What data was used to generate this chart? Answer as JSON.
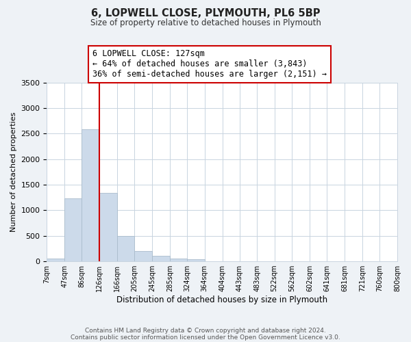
{
  "title": "6, LOPWELL CLOSE, PLYMOUTH, PL6 5BP",
  "subtitle": "Size of property relative to detached houses in Plymouth",
  "xlabel": "Distribution of detached houses by size in Plymouth",
  "ylabel": "Number of detached properties",
  "bar_color": "#ccdaea",
  "bar_edgecolor": "#aabccc",
  "bin_edges": [
    7,
    47,
    86,
    126,
    166,
    205,
    245,
    285,
    324,
    364,
    404,
    443,
    483,
    522,
    562,
    602,
    641,
    681,
    721,
    760,
    800
  ],
  "bin_labels": [
    "7sqm",
    "47sqm",
    "86sqm",
    "126sqm",
    "166sqm",
    "205sqm",
    "245sqm",
    "285sqm",
    "324sqm",
    "364sqm",
    "404sqm",
    "443sqm",
    "483sqm",
    "522sqm",
    "562sqm",
    "602sqm",
    "641sqm",
    "681sqm",
    "721sqm",
    "760sqm",
    "800sqm"
  ],
  "bar_heights": [
    50,
    1230,
    2580,
    1340,
    500,
    200,
    110,
    50,
    40,
    0,
    0,
    0,
    0,
    0,
    0,
    0,
    0,
    0,
    0,
    0
  ],
  "property_line_x": 126,
  "property_line_color": "#cc0000",
  "ylim": [
    0,
    3500
  ],
  "yticks": [
    0,
    500,
    1000,
    1500,
    2000,
    2500,
    3000,
    3500
  ],
  "annotation_line1": "6 LOPWELL CLOSE: 127sqm",
  "annotation_line2": "← 64% of detached houses are smaller (3,843)",
  "annotation_line3": "36% of semi-detached houses are larger (2,151) →",
  "footer_line1": "Contains HM Land Registry data © Crown copyright and database right 2024.",
  "footer_line2": "Contains public sector information licensed under the Open Government Licence v3.0.",
  "background_color": "#eef2f6",
  "plot_background_color": "#ffffff",
  "grid_color": "#c8d4e0"
}
